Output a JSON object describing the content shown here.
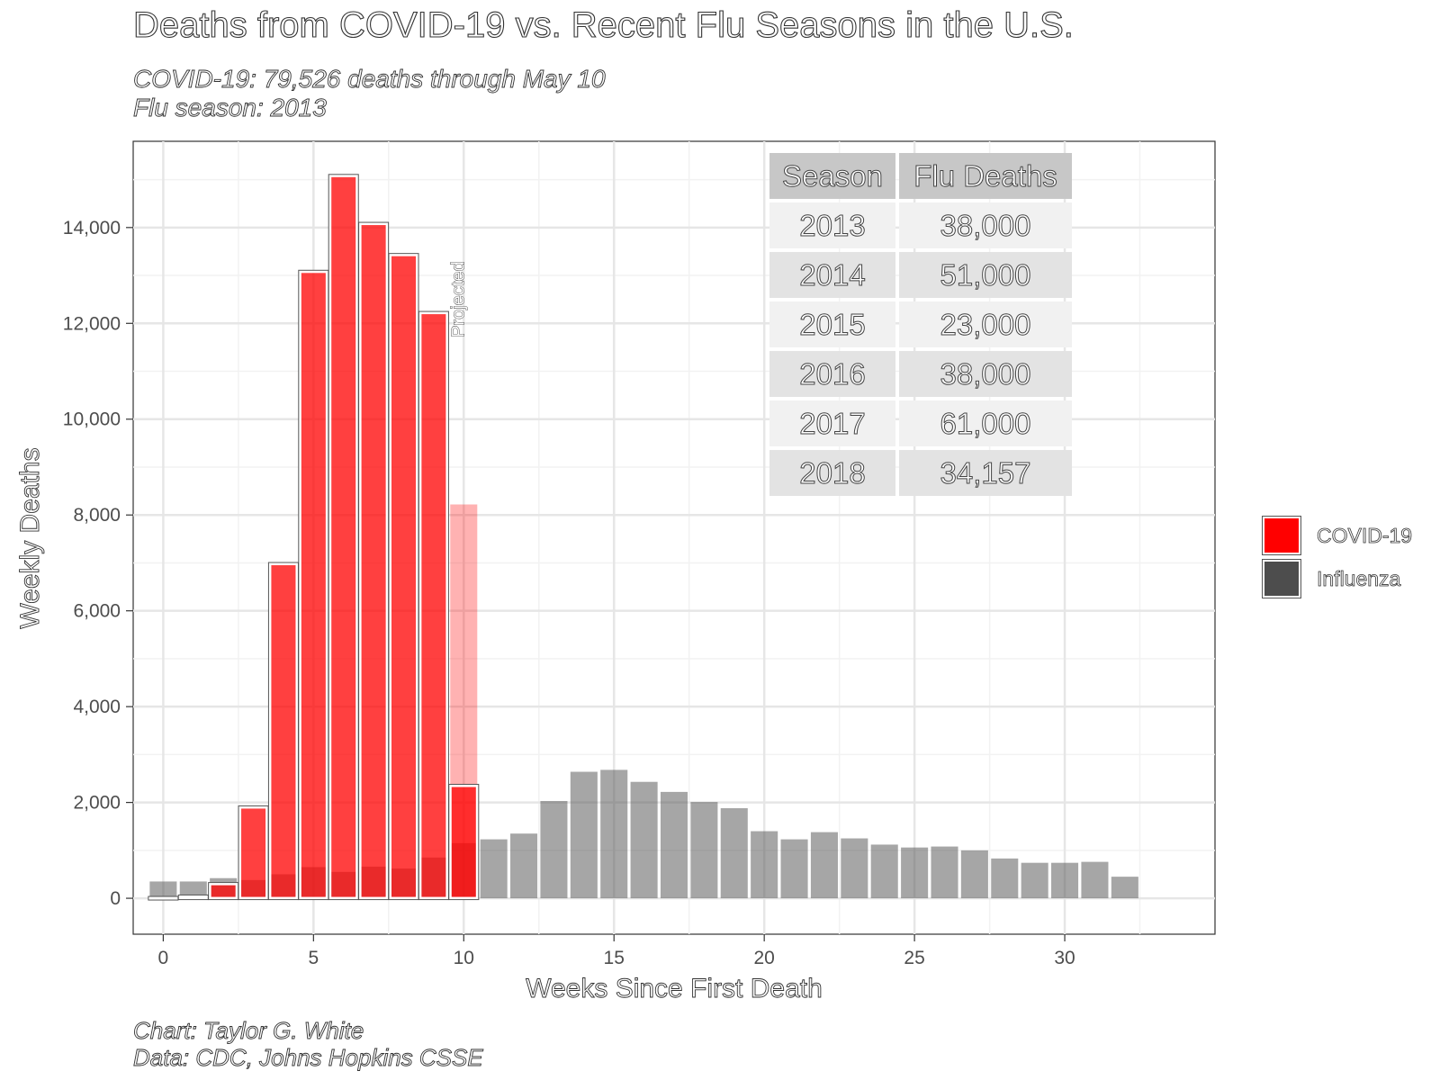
{
  "chart_data": {
    "type": "bar",
    "title": "Deaths from COVID-19 vs. Recent Flu Seasons in the U.S.",
    "subtitle_lines": [
      "COVID-19: 79,526 deaths through May 10",
      "Flu season: 2013"
    ],
    "caption_lines": [
      "Chart: Taylor G. White",
      "Data: CDC, Johns Hopkins CSSE"
    ],
    "xlabel": "Weeks Since First Death",
    "ylabel": "Weekly Deaths",
    "xlim": [
      -1,
      35
    ],
    "ylim": [
      -750,
      15800
    ],
    "x_ticks": [
      0,
      5,
      10,
      15,
      20,
      25,
      30
    ],
    "x_tick_labels": [
      "0",
      "5",
      "10",
      "15",
      "20",
      "25",
      "30"
    ],
    "y_ticks": [
      0,
      2000,
      4000,
      6000,
      8000,
      10000,
      12000,
      14000
    ],
    "y_tick_labels": [
      "0",
      "2,000",
      "4,000",
      "6,000",
      "8,000",
      "10,000",
      "12,000",
      "14,000"
    ],
    "grid": true,
    "legend_position": "right",
    "series": [
      {
        "name": "COVID-19",
        "color": "#ff0000",
        "x": [
          0,
          1,
          2,
          3,
          4,
          5,
          6,
          7,
          8,
          9,
          10
        ],
        "values": [
          10,
          40,
          300,
          1900,
          6980,
          13080,
          15080,
          14080,
          13430,
          12220,
          2350
        ]
      },
      {
        "name": "Influenza",
        "color": "#4d4d4d",
        "x": [
          0,
          1,
          2,
          3,
          4,
          5,
          6,
          7,
          8,
          9,
          10,
          11,
          12,
          13,
          14,
          15,
          16,
          17,
          18,
          19,
          20,
          21,
          22,
          23,
          24,
          25,
          26,
          27,
          28,
          29,
          30,
          31,
          32
        ],
        "values": [
          350,
          350,
          420,
          380,
          500,
          650,
          550,
          660,
          620,
          850,
          1150,
          1230,
          1350,
          2030,
          2640,
          2680,
          2430,
          2220,
          2010,
          1880,
          1400,
          1230,
          1380,
          1250,
          1120,
          1060,
          1080,
          1000,
          830,
          740,
          740,
          760,
          450
        ]
      }
    ],
    "projection": {
      "label": "Projected",
      "x": 10,
      "value": 8220
    },
    "flu_table": {
      "headers": [
        "Season",
        "Flu Deaths"
      ],
      "rows": [
        [
          "2013",
          "38,000"
        ],
        [
          "2014",
          "51,000"
        ],
        [
          "2015",
          "23,000"
        ],
        [
          "2016",
          "38,000"
        ],
        [
          "2017",
          "61,000"
        ],
        [
          "2018",
          "34,157"
        ]
      ]
    }
  }
}
